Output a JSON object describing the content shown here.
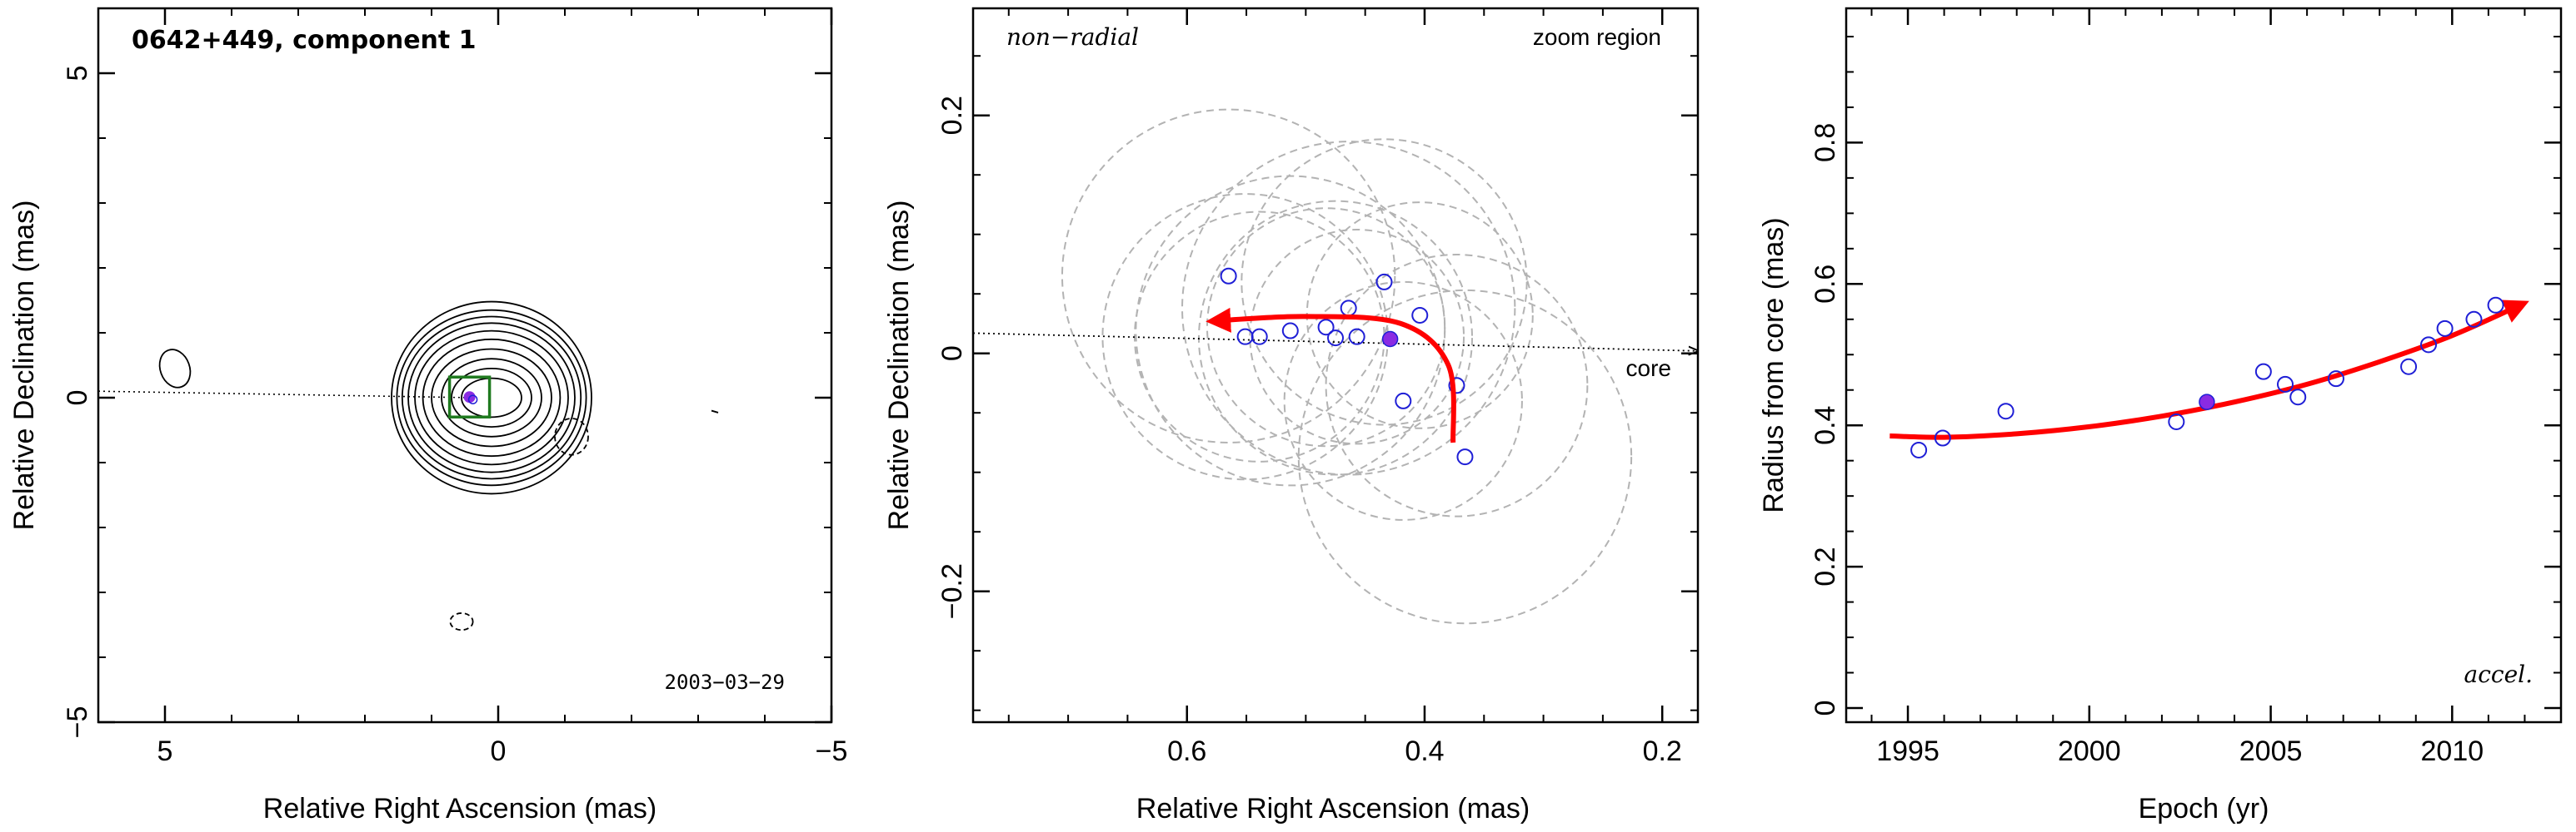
{
  "figure": {
    "colors": {
      "axis": "#000000",
      "points": "#1f1fd6",
      "highlight": "#8a2be2",
      "arrow": "#ff0000",
      "frame_box": "#1f7a1f",
      "ellipses": "#b3b3b3"
    }
  },
  "chart_data": [
    {
      "type": "scatter",
      "panel": "contour-map",
      "title": "0642+449, component 1",
      "date_label": "2003−03−29",
      "xlabel": "Relative Right Ascension (mas)",
      "ylabel": "Relative Declination (mas)",
      "xlim": [
        6,
        -5
      ],
      "ylim": [
        -5,
        6
      ],
      "xticks": [
        5,
        0,
        -5
      ],
      "yticks": [
        -5,
        0,
        5
      ],
      "xtick_labels": [
        "5",
        "0",
        "−5"
      ],
      "ytick_labels": [
        "−5",
        "0",
        "5"
      ],
      "contours": {
        "center": [
          0.1,
          0.0
        ],
        "levels_rx": [
          0.45,
          0.6,
          0.75,
          0.9,
          1.03,
          1.15,
          1.25,
          1.34,
          1.42,
          1.5
        ],
        "levels_ry": [
          0.3,
          0.45,
          0.6,
          0.75,
          0.9,
          1.03,
          1.15,
          1.25,
          1.35,
          1.48
        ],
        "negative": [
          {
            "x": -1.1,
            "y": -0.6,
            "rx": 0.25,
            "ry": 0.28
          },
          {
            "x": 0.55,
            "y": -3.45,
            "rx": 0.17,
            "ry": 0.13
          }
        ],
        "isolated": [
          {
            "x": 4.85,
            "y": 0.45,
            "rx": 0.22,
            "ry": 0.3
          }
        ]
      },
      "component": {
        "x": 0.43,
        "y": 0.01,
        "box_halfwidth": 0.3
      },
      "core_direction": {
        "from": [
          6.0,
          0.1
        ],
        "to": [
          0.4,
          0.0
        ]
      },
      "grid": false
    },
    {
      "type": "scatter",
      "panel": "zoom-region",
      "corner_label_left": "non−radial",
      "corner_label_right": "zoom region",
      "core_label": "core",
      "xlabel": "Relative Right Ascension (mas)",
      "ylabel": "Relative Declination (mas)",
      "xlim": [
        0.78,
        0.17
      ],
      "ylim": [
        -0.31,
        0.29
      ],
      "xticks": [
        0.6,
        0.4,
        0.2
      ],
      "yticks": [
        -0.2,
        0,
        0.2
      ],
      "xtick_labels": [
        "0.6",
        "0.4",
        "0.2"
      ],
      "ytick_labels": [
        "−0.2",
        "0",
        "0.2"
      ],
      "x": [
        0.565,
        0.551,
        0.539,
        0.513,
        0.483,
        0.475,
        0.464,
        0.457,
        0.434,
        0.418,
        0.404,
        0.366,
        0.373
      ],
      "y": [
        0.065,
        0.014,
        0.014,
        0.019,
        0.022,
        0.013,
        0.038,
        0.014,
        0.06,
        -0.04,
        0.032,
        -0.087,
        -0.027
      ],
      "highlight": {
        "x": 0.429,
        "y": 0.012
      },
      "ellipses": [
        {
          "x": 0.565,
          "y": 0.065,
          "r": 0.14
        },
        {
          "x": 0.551,
          "y": 0.014,
          "r": 0.12
        },
        {
          "x": 0.539,
          "y": 0.014,
          "r": 0.105
        },
        {
          "x": 0.513,
          "y": 0.019,
          "r": 0.13
        },
        {
          "x": 0.483,
          "y": 0.022,
          "r": 0.1
        },
        {
          "x": 0.475,
          "y": 0.013,
          "r": 0.115
        },
        {
          "x": 0.464,
          "y": 0.038,
          "r": 0.14
        },
        {
          "x": 0.457,
          "y": 0.014,
          "r": 0.09
        },
        {
          "x": 0.434,
          "y": 0.06,
          "r": 0.12
        },
        {
          "x": 0.418,
          "y": -0.04,
          "r": 0.1
        },
        {
          "x": 0.404,
          "y": 0.032,
          "r": 0.095
        },
        {
          "x": 0.366,
          "y": -0.087,
          "r": 0.14
        },
        {
          "x": 0.373,
          "y": -0.027,
          "r": 0.11
        }
      ],
      "arrow_path": [
        [
          0.376,
          -0.075
        ],
        [
          0.38,
          -0.01
        ],
        [
          0.42,
          0.025
        ],
        [
          0.5,
          0.031
        ],
        [
          0.58,
          0.027
        ]
      ],
      "core_direction": {
        "from": [
          0.78,
          0.017
        ],
        "to": [
          0.17,
          0.002
        ]
      },
      "grid": false
    },
    {
      "type": "scatter",
      "panel": "radius-vs-epoch",
      "corner_label": "accel.",
      "xlabel": "Epoch (yr)",
      "ylabel": "Radius from core (mas)",
      "xlim": [
        1993.3,
        2013.0
      ],
      "ylim": [
        -0.02,
        0.99
      ],
      "xticks": [
        1995,
        2000,
        2005,
        2010
      ],
      "yticks": [
        0,
        0.2,
        0.4,
        0.6,
        0.8
      ],
      "xtick_labels": [
        "1995",
        "2000",
        "2005",
        "2010"
      ],
      "ytick_labels": [
        "0",
        "0.2",
        "0.4",
        "0.6",
        "0.8"
      ],
      "x": [
        1995.3,
        1995.96,
        1997.7,
        2002.4,
        2004.8,
        2005.4,
        2005.75,
        2006.8,
        2008.8,
        2009.35,
        2009.8,
        2010.6,
        2011.2
      ],
      "y": [
        0.365,
        0.382,
        0.42,
        0.405,
        0.476,
        0.458,
        0.44,
        0.466,
        0.483,
        0.514,
        0.537,
        0.55,
        0.57
      ],
      "highlight": {
        "x": 2003.24,
        "y": 0.433
      },
      "fit_curve": [
        [
          1994.5,
          0.385
        ],
        [
          1996.0,
          0.383
        ],
        [
          1998.0,
          0.388
        ],
        [
          2000.0,
          0.398
        ],
        [
          2002.0,
          0.413
        ],
        [
          2004.0,
          0.433
        ],
        [
          2006.0,
          0.458
        ],
        [
          2008.0,
          0.49
        ],
        [
          2010.0,
          0.527
        ],
        [
          2012.0,
          0.573
        ]
      ],
      "grid": false
    }
  ]
}
